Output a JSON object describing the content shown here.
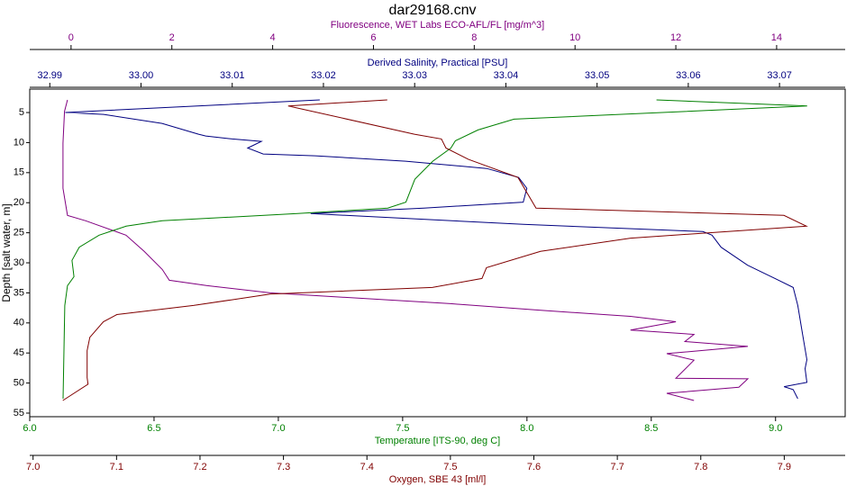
{
  "chart_data": {
    "type": "line",
    "title": "dar29168.cnv",
    "y_label": "Depth [salt water, m]",
    "ylim": [
      1.1,
      55.6
    ],
    "y_inverted": true,
    "yticks": [
      5,
      10,
      15,
      20,
      25,
      30,
      35,
      40,
      45,
      50,
      55
    ],
    "x_axes": [
      {
        "label": "Fluorescence, WET Labs ECO-AFL/FL [mg/m^3]",
        "color": "#800080",
        "side": "top",
        "xlim": [
          -0.82,
          15.36
        ],
        "xticks": [
          0,
          2,
          4,
          6,
          8,
          10,
          12,
          14
        ]
      },
      {
        "label": "Derived Salinity, Practical [PSU]",
        "color": "#000080",
        "side": "top",
        "xlim": [
          32.9878,
          33.0772
        ],
        "xticks": [
          32.99,
          {
            "value": 33.0,
            "label": "33.00"
          },
          33.01,
          33.02,
          33.03,
          33.04,
          33.05,
          33.06,
          33.07
        ]
      },
      {
        "label": "Temperature [ITS-90, deg C]",
        "color": "#008000",
        "side": "bottom",
        "xlim": [
          6.0,
          9.28
        ],
        "xticks": [
          {
            "value": 6.0,
            "label": "6.0"
          },
          6.5,
          {
            "value": 7.0,
            "label": "7.0"
          },
          7.5,
          {
            "value": 8.0,
            "label": "8.0"
          },
          8.5,
          {
            "value": 9.0,
            "label": "9.0"
          }
        ]
      },
      {
        "label": "Oxygen, SBE 43 [ml/l]",
        "color": "#800000",
        "side": "bottom",
        "xlim": [
          6.996,
          7.973
        ],
        "xticks": [
          {
            "value": 7.0,
            "label": "7.0"
          },
          7.1,
          7.2,
          7.3,
          7.4,
          7.5,
          7.6,
          7.7,
          7.8,
          7.9
        ]
      }
    ],
    "series": [
      {
        "x_axis": 0,
        "color": "#800080",
        "depth": [
          2.9,
          4.8,
          10.1,
          17.6,
          22.1,
          23.0,
          25.4,
          28.1,
          31.1,
          32.9,
          33.8,
          35.0,
          36.8,
          37.9,
          38.9,
          39.8,
          41.2,
          41.9,
          43.1,
          43.9,
          45.1,
          46.2,
          49.2,
          49.3,
          50.7,
          51.7,
          52.9
        ],
        "values": [
          -0.07,
          -0.13,
          -0.16,
          -0.16,
          -0.07,
          0.29,
          1.09,
          1.45,
          1.81,
          1.95,
          2.7,
          3.95,
          7.53,
          9.32,
          11.1,
          12.0,
          11.1,
          12.36,
          12.18,
          13.43,
          11.82,
          12.36,
          12.0,
          13.43,
          13.25,
          11.82,
          12.36
        ]
      },
      {
        "x_axis": 1,
        "color": "#000080",
        "depth": [
          2.9,
          5.0,
          5.3,
          6.8,
          8.6,
          8.9,
          9.4,
          9.8,
          10.9,
          11.9,
          12.2,
          13.1,
          14.3,
          15.8,
          17.6,
          19.9,
          20.9,
          21.8,
          23.6,
          24.8,
          25.4,
          27.4,
          30.4,
          32.6,
          34.1,
          37.1,
          41.6,
          46.1,
          47.6,
          49.9,
          50.6,
          51.1,
          52.6
        ],
        "values": [
          33.0196,
          32.9917,
          32.9959,
          33.0023,
          33.0063,
          33.0071,
          33.01,
          33.0132,
          33.0117,
          33.0134,
          33.0191,
          33.029,
          33.0379,
          33.0414,
          33.0423,
          33.0419,
          33.031,
          33.0186,
          33.0419,
          33.0616,
          33.0626,
          33.0636,
          33.0665,
          33.0695,
          33.0715,
          33.072,
          33.0725,
          33.073,
          33.0728,
          33.073,
          33.0705,
          33.0715,
          33.072
        ]
      },
      {
        "x_axis": 2,
        "color": "#008000",
        "depth": [
          2.9,
          3.9,
          6.1,
          7.9,
          9.7,
          10.9,
          13.1,
          16.1,
          19.9,
          20.9,
          21.8,
          23.0,
          23.9,
          25.4,
          27.4,
          29.6,
          32.3,
          33.8,
          37.1,
          52.6
        ],
        "values": [
          8.521,
          9.127,
          7.948,
          7.803,
          7.712,
          7.694,
          7.621,
          7.549,
          7.513,
          7.44,
          7.077,
          6.533,
          6.388,
          6.279,
          6.199,
          6.17,
          6.178,
          6.152,
          6.141,
          6.134
        ]
      },
      {
        "x_axis": 3,
        "color": "#800000",
        "depth": [
          2.9,
          3.9,
          8.6,
          9.4,
          10.9,
          12.8,
          15.8,
          20.9,
          22.1,
          23.9,
          25.9,
          28.1,
          30.8,
          32.6,
          34.1,
          34.9,
          35.2,
          37.1,
          38.6,
          39.8,
          42.4,
          44.6,
          49.1,
          50.2,
          52.9
        ],
        "values": [
          7.4244,
          7.3056,
          7.4568,
          7.4892,
          7.4946,
          7.5216,
          7.581,
          7.6026,
          7.8996,
          7.9266,
          7.716,
          7.608,
          7.5432,
          7.5378,
          7.4784,
          7.338,
          7.284,
          7.1922,
          7.1004,
          7.0842,
          7.068,
          7.0648,
          7.0648,
          7.0659,
          7.0356
        ]
      }
    ]
  }
}
